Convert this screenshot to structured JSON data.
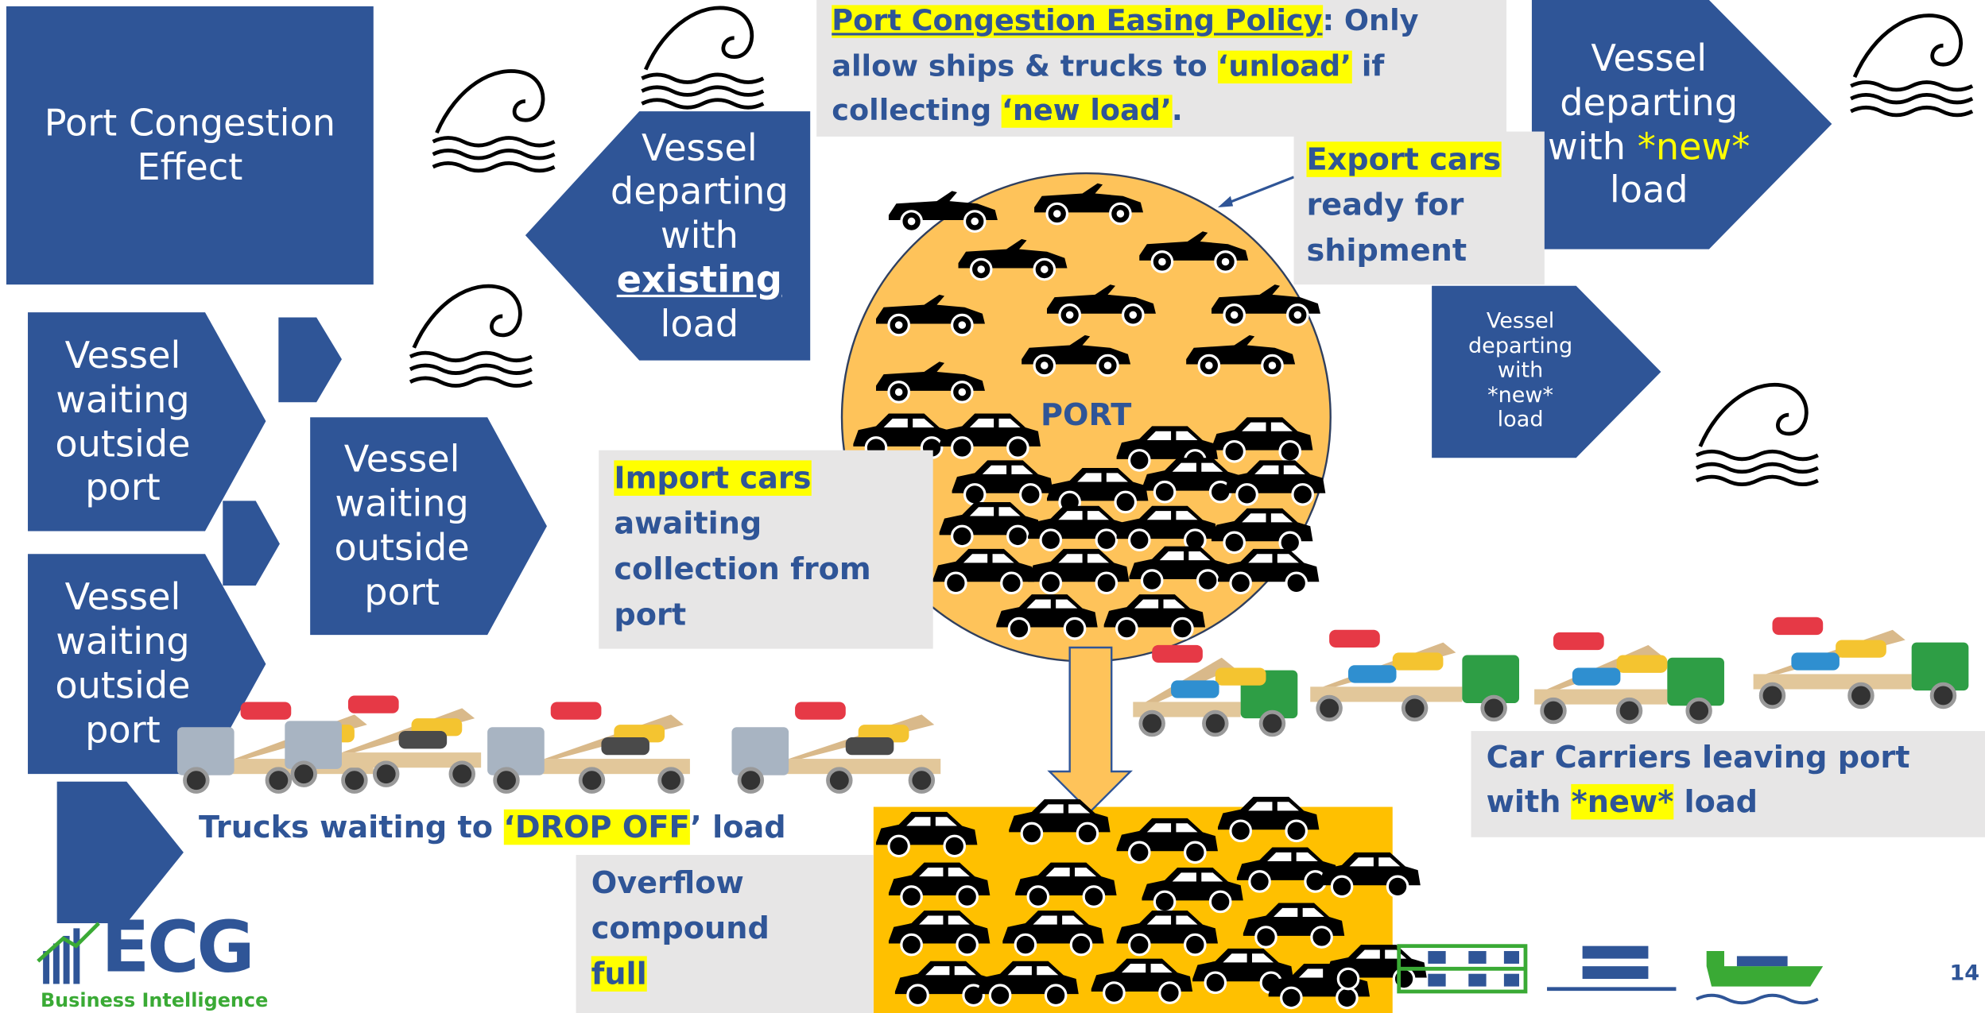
{
  "title_box": {
    "lines": [
      "Port Congestion",
      "Effect"
    ]
  },
  "policy": {
    "heading": "Port Congestion Easing Policy",
    "text_1": ": Only allow ships & trucks to ",
    "unload": "‘unload’",
    "text_2": " if collecting ",
    "new_load": "‘new load’",
    "text_3": "."
  },
  "vessels_waiting": [
    {
      "lines": [
        "Vessel",
        "waiting",
        "outside",
        "port"
      ]
    },
    {
      "lines": [
        "Vessel",
        "waiting",
        "outside",
        "port"
      ]
    },
    {
      "lines": [
        "Vessel",
        "waiting",
        "outside",
        "port"
      ]
    }
  ],
  "vessel_existing": {
    "lines": [
      "Vessel",
      "departing",
      "with"
    ],
    "emphasis": "existing",
    "last": "load"
  },
  "vessel_new_large": {
    "lines": [
      "Vessel",
      "departing"
    ],
    "prefix": "with ",
    "emphasis": "*new*",
    "last": "load"
  },
  "vessel_new_small": {
    "lines": [
      "Vessel",
      "departing",
      "with",
      "*new*",
      "load"
    ]
  },
  "port_label": "PORT",
  "export_note": {
    "highlight": "Export cars",
    "text": "ready for shipment"
  },
  "import_note": {
    "highlight": "Import cars",
    "text": "awaiting collection from port"
  },
  "trucks_note": {
    "prefix": "Trucks waiting to ",
    "highlight": "‘DROP OFF",
    "suffix": "’ load"
  },
  "overflow_note": {
    "text": "Overflow compound",
    "highlight": "full"
  },
  "carriers_note": {
    "prefix": "Car Carriers leaving port with ",
    "highlight": "*new*",
    "suffix": " load"
  },
  "logo": {
    "name": "ECG",
    "tagline": "Business Intelligence"
  },
  "page_number": "14"
}
